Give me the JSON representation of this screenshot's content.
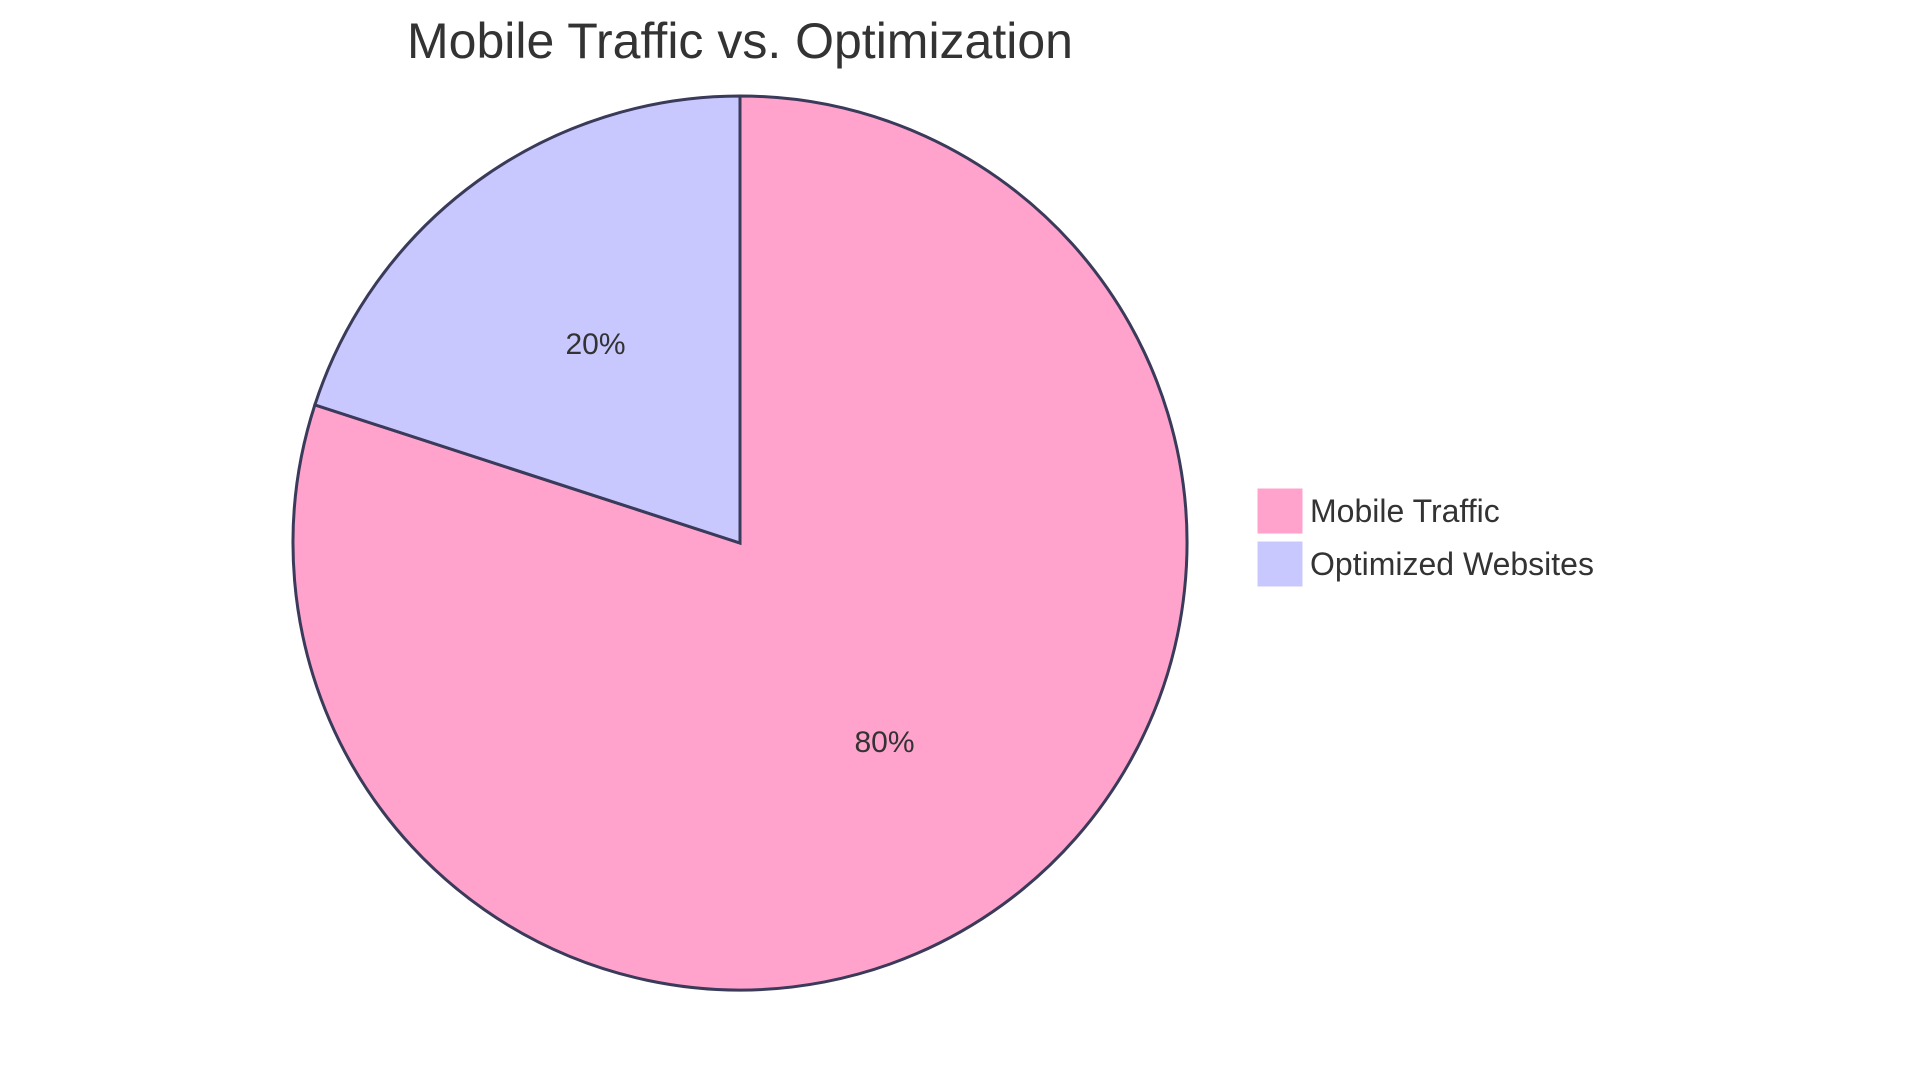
{
  "chart_data": {
    "type": "pie",
    "title": "Mobile Traffic vs. Optimization",
    "categories": [
      "Mobile Traffic",
      "Optimized Websites"
    ],
    "values": [
      80,
      20
    ],
    "colors": [
      "#FFA3CD",
      "#C8C8FF"
    ],
    "stroke_color": "#3A3A5A",
    "legend_position": "right",
    "value_format": "percent"
  }
}
